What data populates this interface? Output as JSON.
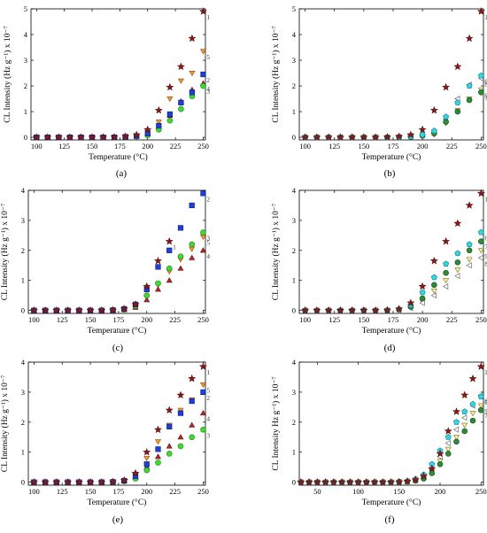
{
  "figure": {
    "panels_order": [
      "a",
      "b",
      "c",
      "d",
      "e",
      "f"
    ]
  },
  "marker_styles": {
    "1": {
      "shape": "star",
      "fill": "#8b1a1a",
      "stroke": "#5a0f0f"
    },
    "2": {
      "shape": "square",
      "fill": "#1f3fd8",
      "stroke": "#0c1f7a"
    },
    "3": {
      "shape": "circle",
      "fill": "#3ddc2f",
      "stroke": "#1f7a18"
    },
    "4": {
      "shape": "triangle-up",
      "fill": "#b8262a",
      "stroke": "#5a1010"
    },
    "5": {
      "shape": "triangle-down",
      "fill": "#f39a33",
      "stroke": "#8a4d0c"
    },
    "6": {
      "shape": "pentagon",
      "fill": "#33d6e6",
      "stroke": "#127a84"
    },
    "7": {
      "shape": "circle",
      "fill": "#2e8b3a",
      "stroke": "#124a18"
    },
    "8": {
      "shape": "triangle-left",
      "fill": "#ffffff",
      "stroke": "#555555"
    },
    "9": {
      "shape": "triangle-down",
      "fill": "#f4f0a0",
      "stroke": "#7a7430"
    }
  },
  "chart_data": [
    {
      "type": "scatter",
      "panel": "a",
      "caption": "(a)",
      "xlabel": "Temperature (°C)",
      "ylabel": "CL Intensity (Hz g⁻¹) x 10⁻⁷",
      "xlim": [
        95,
        252
      ],
      "ylim": [
        -0.1,
        5
      ],
      "xticks": [
        "100",
        "125",
        "150",
        "175",
        "200",
        "225",
        "250"
      ],
      "yticks": [
        "0",
        "1",
        "2",
        "3",
        "4",
        "5"
      ],
      "x": [
        100,
        110,
        120,
        130,
        140,
        150,
        160,
        170,
        180,
        190,
        200,
        210,
        220,
        230,
        240,
        250
      ],
      "series": [
        {
          "name": "1",
          "style": "1",
          "values": [
            0,
            0,
            0,
            0,
            0,
            0,
            0,
            0.01,
            0.03,
            0.1,
            0.3,
            1.05,
            1.95,
            2.75,
            3.85,
            4.9
          ]
        },
        {
          "name": "2",
          "style": "2",
          "values": [
            0,
            0,
            0,
            0,
            0,
            0,
            0,
            0,
            0.02,
            0.05,
            0.15,
            0.45,
            0.9,
            1.35,
            1.75,
            2.45
          ]
        },
        {
          "name": "3",
          "style": "3",
          "values": [
            0,
            0,
            0,
            0,
            0,
            0,
            0,
            0,
            0.01,
            0.03,
            0.08,
            0.3,
            0.65,
            1.1,
            1.6,
            2.0
          ]
        },
        {
          "name": "4",
          "style": "4",
          "values": [
            0,
            0,
            0,
            0,
            0,
            0,
            0,
            0,
            0.02,
            0.04,
            0.12,
            0.4,
            0.85,
            1.4,
            1.85,
            2.1
          ]
        },
        {
          "name": "5",
          "style": "5",
          "values": [
            0,
            0,
            0,
            0,
            0,
            0,
            0,
            0,
            0.02,
            0.06,
            0.2,
            0.6,
            1.5,
            2.2,
            2.5,
            3.35
          ]
        }
      ],
      "labels": [
        {
          "text": "1",
          "series": "1"
        },
        {
          "text": "5",
          "series": "5"
        },
        {
          "text": "2",
          "series": "2"
        },
        {
          "text": "4",
          "series": "4"
        },
        {
          "text": "3",
          "series": "3"
        }
      ]
    },
    {
      "type": "scatter",
      "panel": "b",
      "caption": "(b)",
      "xlabel": "Temperature (°C)",
      "ylabel": "CL Intensity (Hz g⁻¹) x 10⁻⁷",
      "xlim": [
        95,
        252
      ],
      "ylim": [
        -0.1,
        5
      ],
      "xticks": [
        "100",
        "125",
        "150",
        "175",
        "200",
        "225",
        "250"
      ],
      "yticks": [
        "0",
        "1",
        "2",
        "3",
        "4",
        "5"
      ],
      "x": [
        100,
        110,
        120,
        130,
        140,
        150,
        160,
        170,
        180,
        190,
        200,
        210,
        220,
        230,
        240,
        250
      ],
      "series": [
        {
          "name": "1",
          "style": "1",
          "values": [
            0,
            0,
            0,
            0,
            0,
            0,
            0,
            0.01,
            0.03,
            0.1,
            0.3,
            1.05,
            1.95,
            2.75,
            3.85,
            4.9
          ]
        },
        {
          "name": "6",
          "style": "6",
          "values": [
            0,
            0,
            0,
            0,
            0,
            0,
            0,
            0,
            0.01,
            0.03,
            0.1,
            0.25,
            0.8,
            1.35,
            2.0,
            2.4
          ]
        },
        {
          "name": "7",
          "style": "7",
          "values": [
            0,
            0,
            0,
            0,
            0,
            0,
            0,
            0,
            0.01,
            0.02,
            0.06,
            0.15,
            0.6,
            1.0,
            1.45,
            1.75
          ]
        },
        {
          "name": "8",
          "style": "8",
          "values": [
            0,
            0,
            0,
            0,
            0,
            0,
            0,
            0,
            0.01,
            0.02,
            0.08,
            0.2,
            0.7,
            1.5,
            2.05,
            2.3
          ]
        },
        {
          "name": "9",
          "style": "9",
          "values": [
            0,
            0,
            0,
            0,
            0,
            0,
            0,
            0,
            0.01,
            0.02,
            0.05,
            0.1,
            0.55,
            1.05,
            1.5,
            1.85
          ]
        }
      ],
      "labels": [
        {
          "text": "1",
          "series": "1"
        },
        {
          "text": "8",
          "series": "8"
        },
        {
          "text": "6",
          "series": "6"
        },
        {
          "text": "9",
          "series": "9"
        },
        {
          "text": "7",
          "series": "7"
        }
      ]
    },
    {
      "type": "scatter",
      "panel": "c",
      "caption": "(c)",
      "xlabel": "Temperature (°C)",
      "ylabel": "CL Intensity (Hz g⁻¹) x 10⁻⁷",
      "xlim": [
        95,
        252
      ],
      "ylim": [
        -0.1,
        4
      ],
      "xticks": [
        "100",
        "125",
        "150",
        "175",
        "200",
        "225",
        "250"
      ],
      "yticks": [
        "0",
        "1",
        "2",
        "3",
        "4"
      ],
      "x": [
        100,
        110,
        120,
        130,
        140,
        150,
        160,
        170,
        180,
        190,
        200,
        210,
        220,
        230,
        240,
        250
      ],
      "series": [
        {
          "name": "1",
          "style": "1",
          "values": [
            0,
            0,
            0,
            0,
            0,
            0,
            0,
            0.01,
            0.05,
            0.2,
            0.8,
            1.65,
            2.3,
            null,
            null,
            null
          ]
        },
        {
          "name": "2",
          "style": "2",
          "values": [
            0,
            0,
            0,
            0,
            0,
            0,
            0,
            0.01,
            0.05,
            0.2,
            0.7,
            1.45,
            2.0,
            2.75,
            3.5,
            3.9
          ]
        },
        {
          "name": "3",
          "style": "3",
          "values": [
            0,
            0,
            0,
            0,
            0,
            0,
            0,
            0,
            0.03,
            0.15,
            0.5,
            0.9,
            1.4,
            1.8,
            2.2,
            2.6
          ]
        },
        {
          "name": "4",
          "style": "4",
          "values": [
            0,
            0,
            0,
            0,
            0,
            0,
            0,
            0,
            0.02,
            0.1,
            0.35,
            0.7,
            1.0,
            1.4,
            1.75,
            2.0
          ]
        },
        {
          "name": "5",
          "style": "5",
          "values": [
            0,
            0,
            0,
            0,
            0,
            0,
            0,
            0,
            0.02,
            0.12,
            0.45,
            0.85,
            1.3,
            1.7,
            2.05,
            2.45
          ]
        }
      ],
      "labels": [
        {
          "text": "1",
          "series": "1"
        },
        {
          "text": "2",
          "series": "2"
        },
        {
          "text": "5",
          "series": "5"
        },
        {
          "text": "3",
          "series": "3"
        },
        {
          "text": "4",
          "series": "4"
        }
      ]
    },
    {
      "type": "scatter",
      "panel": "d",
      "caption": "(d)",
      "xlabel": "Temperature (°C)",
      "ylabel": "CL Intensity (Hz g⁻¹) x 10⁻⁷",
      "xlim": [
        95,
        252
      ],
      "ylim": [
        -0.1,
        4
      ],
      "xticks": [
        "100",
        "125",
        "150",
        "175",
        "200",
        "225",
        "250"
      ],
      "yticks": [
        "0",
        "1",
        "2",
        "3",
        "4"
      ],
      "x": [
        100,
        110,
        120,
        130,
        140,
        150,
        160,
        170,
        180,
        190,
        200,
        210,
        220,
        230,
        240,
        250
      ],
      "series": [
        {
          "name": "1",
          "style": "1",
          "values": [
            0,
            0,
            0,
            0,
            0,
            0,
            0,
            0.01,
            0.05,
            0.25,
            0.8,
            1.65,
            2.3,
            2.9,
            3.5,
            3.9
          ]
        },
        {
          "name": "6",
          "style": "6",
          "values": [
            0,
            0,
            0,
            0,
            0,
            0,
            0,
            0.01,
            0.04,
            0.18,
            0.6,
            1.1,
            1.55,
            1.9,
            2.2,
            2.6
          ]
        },
        {
          "name": "7",
          "style": "7",
          "values": [
            0,
            0,
            0,
            0,
            0,
            0,
            0,
            0,
            0.03,
            0.12,
            0.4,
            0.85,
            1.25,
            1.6,
            2.0,
            2.3
          ]
        },
        {
          "name": "8",
          "style": "8",
          "values": [
            0,
            0,
            0,
            0,
            0,
            0,
            0,
            0,
            0.02,
            0.08,
            0.25,
            0.5,
            0.8,
            1.15,
            1.5,
            1.75
          ]
        },
        {
          "name": "9",
          "style": "9",
          "values": [
            0,
            0,
            0,
            0,
            0,
            0,
            0,
            0,
            0.02,
            0.1,
            0.3,
            0.65,
            1.0,
            1.35,
            1.7,
            2.0
          ]
        }
      ],
      "labels": [
        {
          "text": "1",
          "series": "1"
        },
        {
          "text": "6",
          "series": "6"
        },
        {
          "text": "9",
          "series": "9"
        },
        {
          "text": "7",
          "series": "7"
        },
        {
          "text": "8",
          "series": "8"
        }
      ]
    },
    {
      "type": "scatter",
      "panel": "e",
      "caption": "(e)",
      "xlabel": "Temperature (°C)",
      "ylabel": "CL Intensity (Hz g⁻¹) x 10⁻⁷",
      "xlim": [
        95,
        252
      ],
      "ylim": [
        -0.1,
        4
      ],
      "xticks": [
        "100",
        "125",
        "150",
        "175",
        "200",
        "225",
        "250"
      ],
      "yticks": [
        "0",
        "1",
        "2",
        "3",
        "4"
      ],
      "x": [
        100,
        110,
        120,
        130,
        140,
        150,
        160,
        170,
        180,
        190,
        200,
        210,
        220,
        230,
        240,
        250
      ],
      "series": [
        {
          "name": "1",
          "style": "1",
          "values": [
            0,
            0,
            0,
            0,
            0,
            0,
            0,
            0.01,
            0.06,
            0.3,
            1.0,
            1.75,
            2.4,
            2.9,
            3.45,
            3.85
          ]
        },
        {
          "name": "2",
          "style": "2",
          "values": [
            0,
            0,
            0,
            0,
            0,
            0,
            0,
            0.01,
            0.05,
            0.2,
            0.6,
            1.1,
            1.85,
            2.3,
            2.7,
            3.0
          ]
        },
        {
          "name": "3",
          "style": "3",
          "values": [
            0,
            0,
            0,
            0,
            0,
            0,
            0,
            0,
            0.03,
            0.12,
            0.4,
            0.65,
            0.95,
            1.2,
            1.5,
            1.75
          ]
        },
        {
          "name": "4",
          "style": "4",
          "values": [
            0,
            0,
            0,
            0,
            0,
            0,
            0,
            0,
            0.04,
            0.15,
            0.5,
            0.85,
            1.2,
            1.5,
            1.9,
            2.3
          ]
        },
        {
          "name": "5",
          "style": "5",
          "values": [
            0,
            0,
            0,
            0,
            0,
            0,
            0,
            0.01,
            0.05,
            0.25,
            0.8,
            1.35,
            1.9,
            2.4,
            2.75,
            3.25
          ]
        }
      ],
      "labels": [
        {
          "text": "1",
          "series": "1"
        },
        {
          "text": "5",
          "series": "5"
        },
        {
          "text": "2",
          "series": "2"
        },
        {
          "text": "4",
          "series": "4"
        },
        {
          "text": "3",
          "series": "3"
        }
      ]
    },
    {
      "type": "scatter",
      "panel": "f",
      "caption": "(f)",
      "xlabel": "Temperature (°C)",
      "ylabel": "CL Intensity Hz g⁻¹) x 10⁻⁷",
      "xlim": [
        28,
        253
      ],
      "ylim": [
        -0.1,
        4
      ],
      "xticks": [
        "50",
        "100",
        "150",
        "200",
        "250"
      ],
      "yticks": [
        "0",
        "1",
        "2",
        "3",
        "4"
      ],
      "x": [
        30,
        40,
        50,
        60,
        70,
        80,
        90,
        100,
        110,
        120,
        130,
        140,
        150,
        160,
        170,
        180,
        190,
        200,
        210,
        220,
        230,
        240,
        250
      ],
      "series": [
        {
          "name": "1",
          "style": "1",
          "values": [
            0,
            0,
            0,
            0,
            0,
            0,
            0,
            0,
            0,
            0,
            0,
            0,
            0.01,
            0.03,
            0.08,
            0.2,
            0.45,
            0.95,
            1.7,
            2.35,
            2.9,
            3.45,
            3.85
          ]
        },
        {
          "name": "6",
          "style": "6",
          "values": [
            0,
            0,
            0,
            0,
            0,
            0,
            0,
            0,
            0,
            0,
            0,
            0,
            0.01,
            0.03,
            0.1,
            0.25,
            0.6,
            1.05,
            1.5,
            2.0,
            2.35,
            2.6,
            2.85
          ]
        },
        {
          "name": "7",
          "style": "7",
          "values": [
            0,
            0,
            0,
            0,
            0,
            0,
            0,
            0,
            0,
            0,
            0,
            0,
            0.01,
            0.02,
            0.05,
            0.12,
            0.3,
            0.6,
            0.95,
            1.35,
            1.7,
            2.05,
            2.4
          ]
        },
        {
          "name": "8",
          "style": "8",
          "values": [
            0,
            0,
            0,
            0,
            0,
            0,
            0,
            0,
            0,
            0,
            0,
            0,
            0.01,
            0.03,
            0.08,
            0.2,
            0.45,
            0.85,
            1.3,
            1.75,
            2.15,
            2.55,
            2.9
          ]
        },
        {
          "name": "9",
          "style": "9",
          "values": [
            0,
            0,
            0,
            0,
            0,
            0,
            0,
            0,
            0,
            0,
            0,
            0,
            0.01,
            0.02,
            0.06,
            0.15,
            0.35,
            0.7,
            1.1,
            1.5,
            1.9,
            2.3,
            2.55
          ]
        }
      ],
      "labels": [
        {
          "text": "1",
          "series": "1"
        },
        {
          "text": "8",
          "series": "8"
        },
        {
          "text": "6",
          "series": "6"
        },
        {
          "text": "9",
          "series": "9"
        },
        {
          "text": "7",
          "series": "7"
        }
      ]
    }
  ]
}
